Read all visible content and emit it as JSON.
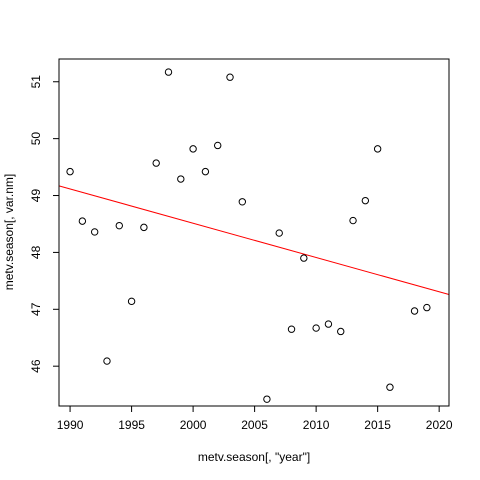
{
  "chart_data": {
    "type": "scatter",
    "xlabel": "metv.season[, \"year\"]",
    "ylabel": "metv.season[, var.nm]",
    "xlim": [
      1989.1,
      2020.8
    ],
    "ylim": [
      45.3,
      51.4
    ],
    "x_ticks": [
      1990,
      1995,
      2000,
      2005,
      2010,
      2015,
      2020
    ],
    "y_ticks": [
      46,
      47,
      48,
      49,
      50,
      51
    ],
    "x_tick_labels": [
      "1990",
      "1995",
      "2000",
      "2005",
      "2010",
      "2015",
      "2020"
    ],
    "y_tick_labels": [
      "46",
      "47",
      "48",
      "49",
      "50",
      "51"
    ],
    "series": [
      {
        "x": [
          1990,
          1991,
          1992,
          1993,
          1994,
          1995,
          1996,
          1997,
          1998,
          1999,
          2000,
          2001,
          2002,
          2003,
          2004,
          2006,
          2007,
          2008,
          2009,
          2010,
          2011,
          2012,
          2013,
          2014,
          2015,
          2016,
          2018,
          2019
        ],
        "y": [
          49.42,
          48.55,
          48.36,
          46.09,
          48.47,
          47.14,
          48.44,
          49.57,
          51.17,
          49.29,
          49.82,
          49.42,
          49.88,
          51.08,
          48.89,
          45.42,
          48.34,
          46.65,
          47.9,
          46.67,
          46.74,
          46.61,
          48.56,
          48.91,
          49.82,
          45.63,
          46.97,
          47.03
        ],
        "marker": "open-circle",
        "color": "#000000"
      }
    ],
    "trendline": {
      "x": [
        1989.1,
        2020.8
      ],
      "y": [
        49.17,
        47.26
      ],
      "color": "#ff0000"
    }
  }
}
